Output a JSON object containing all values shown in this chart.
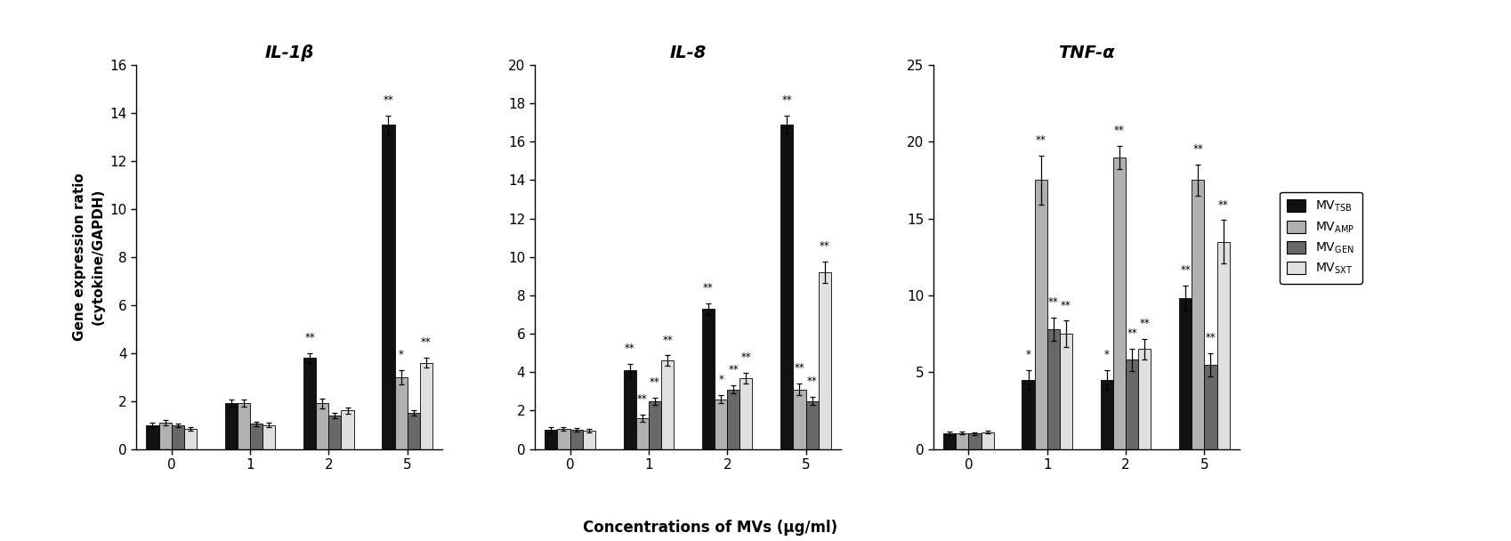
{
  "panels": [
    {
      "title": "IL-1β",
      "ylim": [
        0,
        16
      ],
      "yticks": [
        0,
        2,
        4,
        6,
        8,
        10,
        12,
        14,
        16
      ],
      "ylabel": "Gene expression ratio\n(cytokine/GAPDH)",
      "concentrations": [
        0,
        1,
        2,
        5
      ],
      "series": {
        "MVTSB": {
          "values": [
            1.0,
            1.9,
            3.8,
            13.5
          ],
          "errors": [
            0.1,
            0.15,
            0.2,
            0.4
          ]
        },
        "MVAMP": {
          "values": [
            1.1,
            1.9,
            1.9,
            3.0
          ],
          "errors": [
            0.1,
            0.15,
            0.2,
            0.3
          ]
        },
        "MVGEN": {
          "values": [
            1.0,
            1.05,
            1.4,
            1.5
          ],
          "errors": [
            0.08,
            0.1,
            0.12,
            0.12
          ]
        },
        "MVSXT": {
          "values": [
            0.85,
            1.0,
            1.6,
            3.6
          ],
          "errors": [
            0.08,
            0.1,
            0.12,
            0.22
          ]
        }
      },
      "significance": {
        "MVTSB": [
          null,
          null,
          "**",
          "**"
        ],
        "MVAMP": [
          null,
          null,
          null,
          "*"
        ],
        "MVGEN": [
          null,
          null,
          null,
          null
        ],
        "MVSXT": [
          null,
          null,
          null,
          "**"
        ]
      }
    },
    {
      "title": "IL-8",
      "ylim": [
        0,
        20
      ],
      "yticks": [
        0,
        2,
        4,
        6,
        8,
        10,
        12,
        14,
        16,
        18,
        20
      ],
      "ylabel": "",
      "concentrations": [
        0,
        1,
        2,
        5
      ],
      "series": {
        "MVTSB": {
          "values": [
            1.0,
            4.1,
            7.3,
            16.9
          ],
          "errors": [
            0.12,
            0.35,
            0.3,
            0.45
          ]
        },
        "MVAMP": {
          "values": [
            1.05,
            1.6,
            2.6,
            3.1
          ],
          "errors": [
            0.1,
            0.18,
            0.22,
            0.3
          ]
        },
        "MVGEN": {
          "values": [
            1.0,
            2.5,
            3.1,
            2.5
          ],
          "errors": [
            0.08,
            0.18,
            0.22,
            0.22
          ]
        },
        "MVSXT": {
          "values": [
            0.95,
            4.6,
            3.7,
            9.2
          ],
          "errors": [
            0.08,
            0.28,
            0.28,
            0.55
          ]
        }
      },
      "significance": {
        "MVTSB": [
          null,
          "**",
          "**",
          "**"
        ],
        "MVAMP": [
          null,
          "**",
          "*",
          "**"
        ],
        "MVGEN": [
          null,
          "**",
          "**",
          "**"
        ],
        "MVSXT": [
          null,
          "**",
          "**",
          "**"
        ]
      }
    },
    {
      "title": "TNF-α",
      "ylim": [
        0,
        25
      ],
      "yticks": [
        0,
        5,
        10,
        15,
        20,
        25
      ],
      "ylabel": "",
      "concentrations": [
        0,
        1,
        2,
        5
      ],
      "series": {
        "MVTSB": {
          "values": [
            1.0,
            4.5,
            4.5,
            9.8
          ],
          "errors": [
            0.12,
            0.65,
            0.65,
            0.85
          ]
        },
        "MVAMP": {
          "values": [
            1.05,
            17.5,
            19.0,
            17.5
          ],
          "errors": [
            0.1,
            1.6,
            0.75,
            1.0
          ]
        },
        "MVGEN": {
          "values": [
            1.0,
            7.8,
            5.8,
            5.5
          ],
          "errors": [
            0.08,
            0.75,
            0.75,
            0.75
          ]
        },
        "MVSXT": {
          "values": [
            1.1,
            7.5,
            6.5,
            13.5
          ],
          "errors": [
            0.1,
            0.85,
            0.65,
            1.4
          ]
        }
      },
      "significance": {
        "MVTSB": [
          null,
          "*",
          "*",
          "**"
        ],
        "MVAMP": [
          null,
          "**",
          "**",
          "**"
        ],
        "MVGEN": [
          null,
          "**",
          "**",
          "**"
        ],
        "MVSXT": [
          null,
          "**",
          "**",
          "**"
        ]
      }
    }
  ],
  "colors": {
    "MVTSB": "#111111",
    "MVAMP": "#b0b0b0",
    "MVGEN": "#686868",
    "MVSXT": "#e0e0e0"
  },
  "xlabel": "Concentrations of MVs (μg/ml)",
  "bar_width": 0.16,
  "xtick_labels": [
    "0",
    "1",
    "2",
    "5"
  ]
}
